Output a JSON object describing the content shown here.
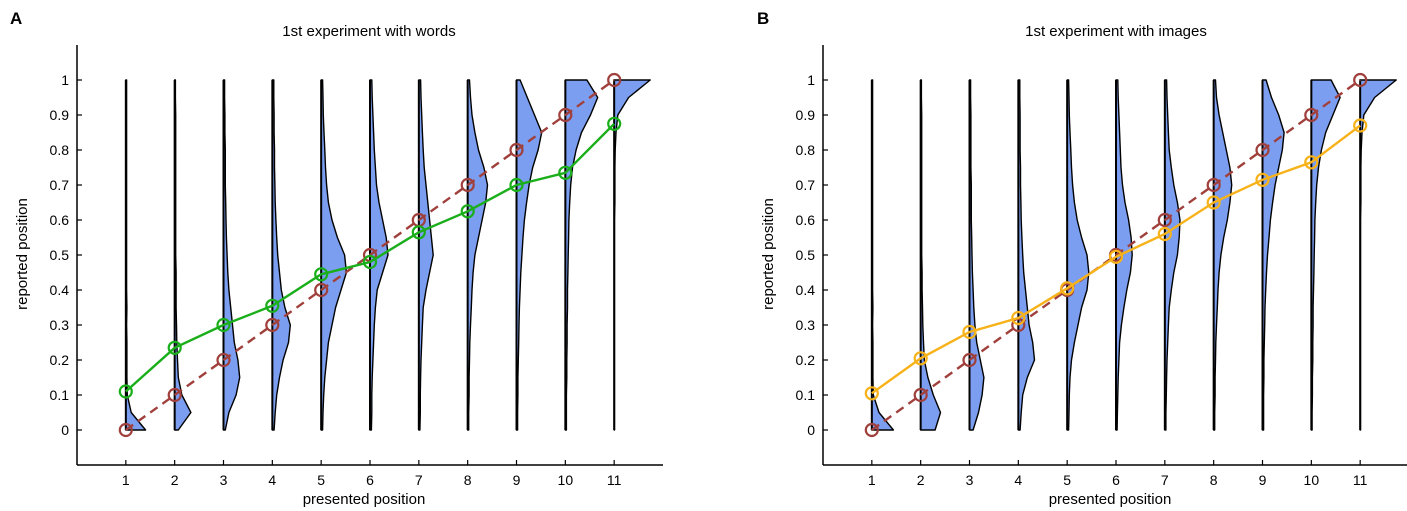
{
  "chart_data": [
    {
      "panel_label": "A",
      "type": "line",
      "title": "1st experiment with words",
      "xlabel": "presented position",
      "ylabel": "reported position",
      "xlim": [
        0,
        12
      ],
      "ylim": [
        -0.1,
        1.1
      ],
      "xticks": [
        1,
        2,
        3,
        4,
        5,
        6,
        7,
        8,
        9,
        10,
        11
      ],
      "yticks": [
        0,
        0.1,
        0.2,
        0.3,
        0.4,
        0.5,
        0.6,
        0.7,
        0.8,
        0.9,
        1
      ],
      "ytick_labels": [
        "0",
        "0.1",
        "0.2",
        "0.3",
        "0.4",
        "0.5",
        "0.6",
        "0.7",
        "0.8",
        "0.9",
        "1"
      ],
      "series": [
        {
          "x": [
            1,
            2,
            3,
            4,
            5,
            6,
            7,
            8,
            9,
            10,
            11
          ],
          "values": [
            0.11,
            0.235,
            0.3,
            0.355,
            0.445,
            0.48,
            0.565,
            0.625,
            0.7,
            0.735,
            0.875
          ],
          "color": "#1aae1a",
          "style": "solid",
          "marker": "circle"
        },
        {
          "x": [
            1,
            2,
            3,
            4,
            5,
            6,
            7,
            8,
            9,
            10,
            11
          ],
          "values": [
            0,
            0.1,
            0.2,
            0.3,
            0.4,
            0.5,
            0.6,
            0.7,
            0.8,
            0.9,
            1.0
          ],
          "color": "#a0403c",
          "style": "dashed",
          "marker": "circle"
        }
      ],
      "distributions": {
        "type": "half-violin",
        "fill": "#7b9ef0",
        "bins": [
          0,
          0.05,
          0.1,
          0.15,
          0.2,
          0.25,
          0.3,
          0.35,
          0.4,
          0.45,
          0.5,
          0.55,
          0.6,
          0.65,
          0.7,
          0.75,
          0.8,
          0.85,
          0.9,
          0.95,
          1.0
        ],
        "densities": [
          [
            0.55,
            0.15,
            0.04,
            0.03,
            0.03,
            0.03,
            0.02,
            0.03,
            0.02,
            0.02,
            0.02,
            0.02,
            0.02,
            0.02,
            0.02,
            0.02,
            0.02,
            0.02,
            0.02,
            0.02,
            0.02
          ],
          [
            0.1,
            0.45,
            0.2,
            0.1,
            0.08,
            0.06,
            0.05,
            0.04,
            0.04,
            0.04,
            0.03,
            0.03,
            0.03,
            0.03,
            0.03,
            0.03,
            0.03,
            0.03,
            0.03,
            0.02,
            0.02
          ],
          [
            0.05,
            0.15,
            0.35,
            0.45,
            0.4,
            0.3,
            0.25,
            0.2,
            0.15,
            0.12,
            0.1,
            0.08,
            0.07,
            0.06,
            0.05,
            0.05,
            0.05,
            0.04,
            0.04,
            0.03,
            0.03
          ],
          [
            0.05,
            0.08,
            0.12,
            0.2,
            0.3,
            0.45,
            0.5,
            0.35,
            0.25,
            0.2,
            0.15,
            0.12,
            0.1,
            0.08,
            0.07,
            0.06,
            0.06,
            0.05,
            0.05,
            0.04,
            0.04
          ],
          [
            0.04,
            0.05,
            0.07,
            0.1,
            0.15,
            0.2,
            0.3,
            0.4,
            0.55,
            0.7,
            0.65,
            0.45,
            0.3,
            0.2,
            0.15,
            0.12,
            0.1,
            0.08,
            0.06,
            0.05,
            0.04
          ],
          [
            0.04,
            0.05,
            0.05,
            0.06,
            0.08,
            0.1,
            0.12,
            0.15,
            0.2,
            0.35,
            0.5,
            0.45,
            0.35,
            0.25,
            0.18,
            0.15,
            0.12,
            0.1,
            0.08,
            0.06,
            0.05
          ],
          [
            0.03,
            0.04,
            0.04,
            0.05,
            0.06,
            0.08,
            0.1,
            0.12,
            0.2,
            0.3,
            0.4,
            0.35,
            0.3,
            0.25,
            0.2,
            0.15,
            0.12,
            0.1,
            0.08,
            0.06,
            0.05
          ],
          [
            0.03,
            0.03,
            0.04,
            0.04,
            0.05,
            0.06,
            0.08,
            0.1,
            0.12,
            0.15,
            0.2,
            0.3,
            0.4,
            0.5,
            0.55,
            0.45,
            0.3,
            0.2,
            0.12,
            0.08,
            0.05
          ],
          [
            0.03,
            0.03,
            0.04,
            0.04,
            0.05,
            0.06,
            0.07,
            0.08,
            0.1,
            0.12,
            0.15,
            0.18,
            0.22,
            0.28,
            0.35,
            0.45,
            0.6,
            0.7,
            0.5,
            0.3,
            0.1
          ],
          [
            0.03,
            0.03,
            0.03,
            0.04,
            0.04,
            0.05,
            0.05,
            0.06,
            0.06,
            0.07,
            0.08,
            0.09,
            0.1,
            0.12,
            0.15,
            0.2,
            0.3,
            0.45,
            0.7,
            0.9,
            0.6
          ],
          [
            0.01,
            0.01,
            0.01,
            0.01,
            0.01,
            0.01,
            0.01,
            0.01,
            0.01,
            0.01,
            0.01,
            0.01,
            0.01,
            0.02,
            0.02,
            0.02,
            0.03,
            0.05,
            0.1,
            0.4,
            1.0
          ]
        ]
      }
    },
    {
      "panel_label": "B",
      "type": "line",
      "title": "1st experiment with images",
      "xlabel": "presented position",
      "ylabel": "reported position",
      "xlim": [
        0,
        12
      ],
      "ylim": [
        -0.1,
        1.1
      ],
      "xticks": [
        1,
        2,
        3,
        4,
        5,
        6,
        7,
        8,
        9,
        10,
        11
      ],
      "yticks": [
        0,
        0.1,
        0.2,
        0.3,
        0.4,
        0.5,
        0.6,
        0.7,
        0.8,
        0.9,
        1
      ],
      "ytick_labels": [
        "0",
        "0.1",
        "0.2",
        "0.3",
        "0.4",
        "0.5",
        "0.6",
        "0.7",
        "0.8",
        "0.9",
        "1"
      ],
      "series": [
        {
          "x": [
            1,
            2,
            3,
            4,
            5,
            6,
            7,
            8,
            9,
            10,
            11
          ],
          "values": [
            0.105,
            0.205,
            0.28,
            0.32,
            0.405,
            0.495,
            0.56,
            0.65,
            0.715,
            0.765,
            0.87
          ],
          "color": "#f7b21a",
          "style": "solid",
          "marker": "circle"
        },
        {
          "x": [
            1,
            2,
            3,
            4,
            5,
            6,
            7,
            8,
            9,
            10,
            11
          ],
          "values": [
            0,
            0.1,
            0.2,
            0.3,
            0.4,
            0.5,
            0.6,
            0.7,
            0.8,
            0.9,
            1.0
          ],
          "color": "#a0403c",
          "style": "dashed",
          "marker": "circle"
        }
      ],
      "distributions": {
        "type": "half-violin",
        "fill": "#7b9ef0",
        "bins": [
          0,
          0.05,
          0.1,
          0.15,
          0.2,
          0.25,
          0.3,
          0.35,
          0.4,
          0.45,
          0.5,
          0.55,
          0.6,
          0.65,
          0.7,
          0.75,
          0.8,
          0.85,
          0.9,
          0.95,
          1.0
        ],
        "densities": [
          [
            0.6,
            0.2,
            0.04,
            0.03,
            0.03,
            0.03,
            0.02,
            0.03,
            0.02,
            0.02,
            0.02,
            0.02,
            0.02,
            0.02,
            0.02,
            0.02,
            0.02,
            0.02,
            0.02,
            0.02,
            0.02
          ],
          [
            0.4,
            0.55,
            0.35,
            0.2,
            0.1,
            0.08,
            0.06,
            0.05,
            0.04,
            0.04,
            0.03,
            0.03,
            0.03,
            0.03,
            0.03,
            0.03,
            0.03,
            0.03,
            0.03,
            0.02,
            0.02
          ],
          [
            0.1,
            0.25,
            0.35,
            0.4,
            0.3,
            0.2,
            0.15,
            0.12,
            0.1,
            0.08,
            0.07,
            0.06,
            0.05,
            0.05,
            0.05,
            0.04,
            0.04,
            0.04,
            0.04,
            0.03,
            0.03
          ],
          [
            0.05,
            0.08,
            0.12,
            0.25,
            0.45,
            0.4,
            0.3,
            0.25,
            0.2,
            0.15,
            0.12,
            0.1,
            0.08,
            0.07,
            0.06,
            0.06,
            0.05,
            0.05,
            0.05,
            0.04,
            0.04
          ],
          [
            0.04,
            0.05,
            0.06,
            0.08,
            0.12,
            0.2,
            0.3,
            0.4,
            0.55,
            0.6,
            0.55,
            0.4,
            0.28,
            0.2,
            0.15,
            0.12,
            0.1,
            0.08,
            0.06,
            0.05,
            0.04
          ],
          [
            0.03,
            0.04,
            0.05,
            0.06,
            0.08,
            0.1,
            0.15,
            0.22,
            0.3,
            0.4,
            0.45,
            0.42,
            0.35,
            0.25,
            0.18,
            0.14,
            0.12,
            0.1,
            0.08,
            0.06,
            0.05
          ],
          [
            0.03,
            0.03,
            0.04,
            0.05,
            0.06,
            0.08,
            0.1,
            0.12,
            0.18,
            0.25,
            0.35,
            0.4,
            0.42,
            0.35,
            0.25,
            0.18,
            0.12,
            0.1,
            0.08,
            0.06,
            0.05
          ],
          [
            0.03,
            0.03,
            0.04,
            0.04,
            0.05,
            0.06,
            0.08,
            0.1,
            0.12,
            0.15,
            0.2,
            0.28,
            0.38,
            0.45,
            0.5,
            0.45,
            0.35,
            0.25,
            0.15,
            0.08,
            0.05
          ],
          [
            0.03,
            0.03,
            0.03,
            0.04,
            0.04,
            0.05,
            0.06,
            0.07,
            0.09,
            0.11,
            0.14,
            0.18,
            0.22,
            0.28,
            0.35,
            0.45,
            0.55,
            0.6,
            0.45,
            0.25,
            0.1
          ],
          [
            0.02,
            0.02,
            0.03,
            0.03,
            0.04,
            0.04,
            0.05,
            0.05,
            0.06,
            0.07,
            0.08,
            0.09,
            0.1,
            0.12,
            0.15,
            0.2,
            0.28,
            0.4,
            0.6,
            0.8,
            0.55
          ],
          [
            0.01,
            0.01,
            0.01,
            0.01,
            0.01,
            0.01,
            0.01,
            0.01,
            0.01,
            0.01,
            0.01,
            0.01,
            0.01,
            0.02,
            0.02,
            0.02,
            0.03,
            0.05,
            0.1,
            0.4,
            1.0
          ]
        ]
      }
    }
  ]
}
